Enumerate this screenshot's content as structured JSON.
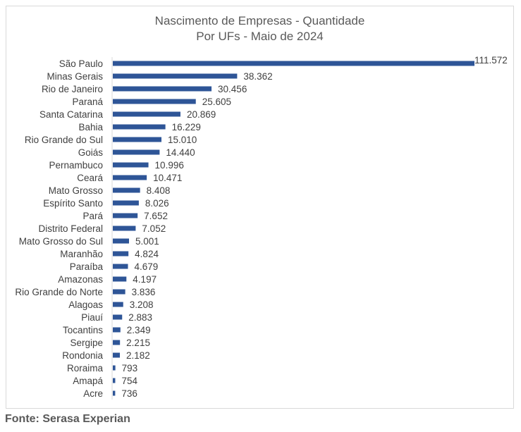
{
  "chart_data": {
    "type": "bar",
    "orientation": "horizontal",
    "title": "Nascimento de Empresas - Quantidade",
    "subtitle": "Por UFs - Maio de 2024",
    "categories": [
      "São Paulo",
      "Minas Gerais",
      "Rio de Janeiro",
      "Paraná",
      "Santa Catarina",
      "Bahia",
      "Rio Grande do Sul",
      "Goiás",
      "Pernambuco",
      "Ceará",
      "Mato Grosso",
      "Espírito Santo",
      "Pará",
      "Distrito Federal",
      "Mato Grosso do Sul",
      "Maranhão",
      "Paraíba",
      "Amazonas",
      "Rio Grande do Norte",
      "Alagoas",
      "Piauí",
      "Tocantins",
      "Sergipe",
      "Rondonia",
      "Roraima",
      "Amapá",
      "Acre"
    ],
    "values": [
      111572,
      38362,
      30456,
      25605,
      20869,
      16229,
      15010,
      14440,
      10996,
      10471,
      8408,
      8026,
      7652,
      7052,
      5001,
      4824,
      4679,
      4197,
      3836,
      3208,
      2883,
      2349,
      2215,
      2182,
      793,
      754,
      736
    ],
    "value_labels": [
      "111.572",
      "38.362",
      "30.456",
      "25.605",
      "20.869",
      "16.229",
      "15.010",
      "14.440",
      "10.996",
      "10.471",
      "8.408",
      "8.026",
      "7.652",
      "7.052",
      "5.001",
      "4.824",
      "4.679",
      "4.197",
      "3.836",
      "3.208",
      "2.883",
      "2.349",
      "2.215",
      "2.182",
      "793",
      "754",
      "736"
    ],
    "bar_color": "#2e5597",
    "grid": false,
    "legend": "none"
  },
  "footer": {
    "source": "Fonte: Serasa Experian"
  }
}
